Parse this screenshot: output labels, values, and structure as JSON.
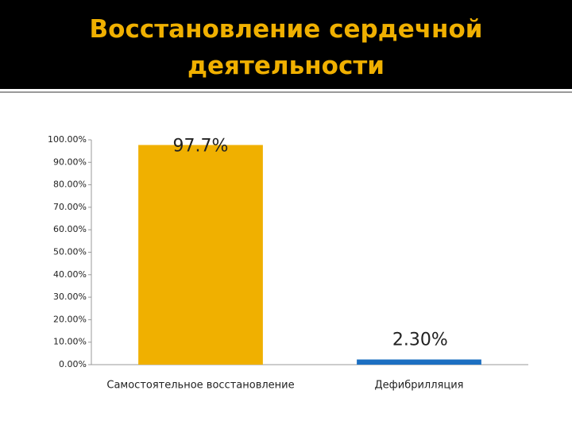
{
  "chart_data": {
    "type": "bar",
    "title": "Восстановление сердечной деятельности",
    "categories": [
      "Самостоятельное восстановление",
      "Дефибрилляция"
    ],
    "series": [
      {
        "values": [
          97.7,
          null
        ],
        "value_labels": [
          "97.7%",
          null
        ],
        "color": "#f0b000"
      },
      {
        "values": [
          null,
          2.3
        ],
        "value_labels": [
          null,
          "2.30%"
        ],
        "color": "#1c6fc1"
      }
    ],
    "ylim": [
      0,
      100
    ],
    "yticks": [
      {
        "value": 0,
        "label": "0.00%"
      },
      {
        "value": 10,
        "label": "10.00%"
      },
      {
        "value": 20,
        "label": "20.00%"
      },
      {
        "value": 30,
        "label": "30.00%"
      },
      {
        "value": 40,
        "label": "40.00%"
      },
      {
        "value": 50,
        "label": "50.00%"
      },
      {
        "value": 60,
        "label": "60.00%"
      },
      {
        "value": 70,
        "label": "70.00%"
      },
      {
        "value": 80,
        "label": "80.00%"
      },
      {
        "value": 90,
        "label": "90.00%"
      },
      {
        "value": 100,
        "label": "100.00%"
      }
    ],
    "grid": false
  }
}
